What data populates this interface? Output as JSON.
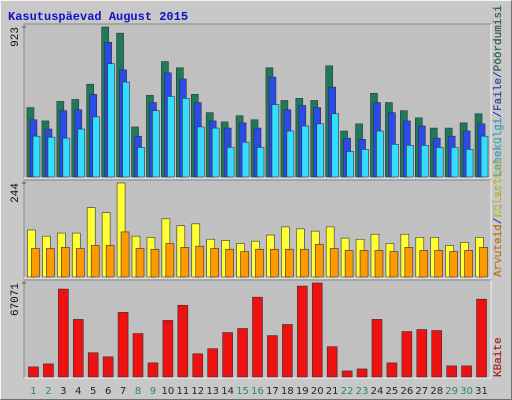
{
  "title": "Kasutuspäevad August 2015",
  "legend_separator": "/",
  "chart_data": [
    {
      "type": "bar",
      "ylim": [
        0,
        923
      ],
      "yticks": [
        923
      ],
      "series": [
        {
          "name": "Pöördumisi",
          "color": "#1f7a5a",
          "values": [
            427,
            345,
            465,
            477,
            571,
            923,
            885,
            308,
            502,
            710,
            672,
            509,
            396,
            339,
            377,
            352,
            672,
            471,
            484,
            471,
            684,
            283,
            327,
            515,
            458,
            408,
            364,
            301,
            301,
            333,
            389
          ]
        },
        {
          "name": "Faile",
          "color": "#2a4be8",
          "values": [
            352,
            295,
            408,
            414,
            509,
            829,
            659,
            251,
            458,
            641,
            603,
            458,
            345,
            301,
            333,
            301,
            615,
            414,
            440,
            427,
            553,
            239,
            232,
            458,
            396,
            345,
            314,
            239,
            251,
            283,
            327
          ]
        },
        {
          "name": "Lehekülgi",
          "color": "#33ddff",
          "values": [
            251,
            245,
            239,
            295,
            370,
            697,
            584,
            182,
            408,
            496,
            484,
            308,
            301,
            182,
            214,
            182,
            446,
            283,
            314,
            327,
            389,
            157,
            170,
            283,
            201,
            195,
            195,
            182,
            182,
            170,
            251
          ]
        }
      ]
    },
    {
      "type": "bar",
      "ylim": [
        0,
        244
      ],
      "yticks": [
        244
      ],
      "series": [
        {
          "name": "Külastusi",
          "color": "#ffff33",
          "values": [
            122,
            106,
            114,
            114,
            180,
            167,
            244,
            106,
            103,
            151,
            133,
            138,
            98,
            95,
            87,
            93,
            109,
            130,
            125,
            119,
            130,
            101,
            98,
            111,
            87,
            111,
            103,
            103,
            82,
            90,
            103
          ]
        },
        {
          "name": "Arvuteid",
          "color": "#ff9900",
          "values": [
            74,
            74,
            77,
            74,
            82,
            82,
            117,
            74,
            72,
            87,
            77,
            80,
            74,
            72,
            66,
            72,
            72,
            72,
            72,
            85,
            74,
            69,
            69,
            69,
            66,
            77,
            69,
            69,
            66,
            69,
            77
          ]
        }
      ]
    },
    {
      "type": "bar",
      "ylim": [
        0,
        67071
      ],
      "yticks": [
        67071
      ],
      "categories": [
        "1",
        "2",
        "3",
        "4",
        "5",
        "6",
        "7",
        "8",
        "9",
        "10",
        "11",
        "12",
        "13",
        "14",
        "15",
        "16",
        "17",
        "18",
        "19",
        "20",
        "21",
        "22",
        "23",
        "24",
        "25",
        "26",
        "27",
        "28",
        "29",
        "30",
        "31"
      ],
      "category_colors": [
        "#2a8a5a",
        "#2a8a5a",
        "#223",
        "#223",
        "#223",
        "#223",
        "#223",
        "#2a8a5a",
        "#2a8a5a",
        "#223",
        "#223",
        "#223",
        "#223",
        "#223",
        "#2a8a5a",
        "#2a8a5a",
        "#223",
        "#223",
        "#223",
        "#223",
        "#223",
        "#2a8a5a",
        "#2a8a5a",
        "#223",
        "#223",
        "#223",
        "#223",
        "#223",
        "#2a8a5a",
        "#2a8a5a",
        "#223"
      ],
      "series": [
        {
          "name": "KBaite",
          "color": "#ee1111",
          "values": [
            7210,
            9373,
            62727,
            41097,
            17304,
            14420,
            46144,
            31003,
            10094,
            40376,
            51191,
            16583,
            20188,
            31724,
            34608,
            56959,
            29561,
            37492,
            64890,
            67071,
            21630,
            4326,
            5768,
            41097,
            10094,
            32445,
            33887,
            33166,
            7931,
            7931,
            55517
          ]
        }
      ]
    }
  ]
}
